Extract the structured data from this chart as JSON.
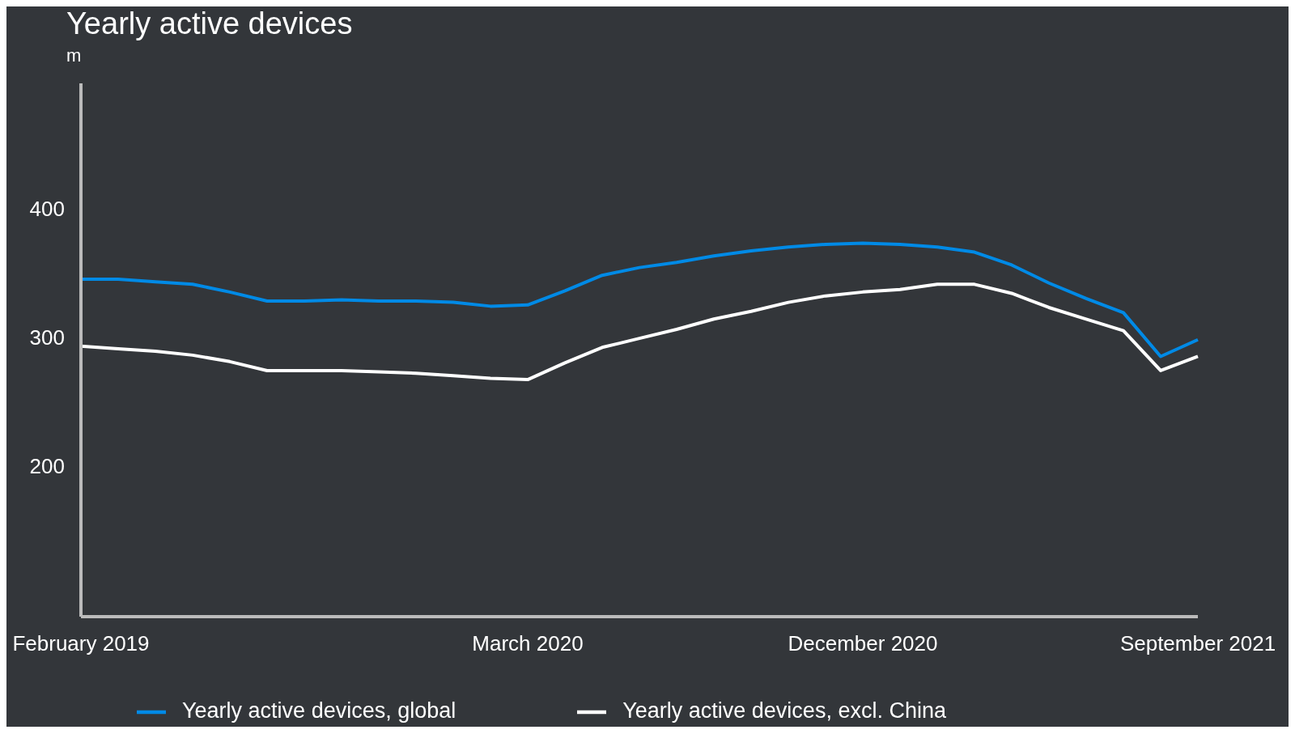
{
  "chart_data": {
    "type": "line",
    "title": "Yearly active devices",
    "ylabel": "m",
    "categories": [
      "February 2019",
      null,
      null,
      null,
      null,
      null,
      null,
      null,
      null,
      null,
      null,
      null,
      "March 2020",
      null,
      null,
      null,
      null,
      null,
      null,
      null,
      null,
      "December 2020",
      null,
      null,
      null,
      null,
      null,
      null,
      null,
      null,
      "September 2021"
    ],
    "series": [
      {
        "name": "Yearly active devices, global",
        "color": "#008ae6",
        "values": [
          345,
          345,
          343,
          341,
          335,
          328,
          328,
          329,
          328,
          328,
          327,
          324,
          325,
          336,
          348,
          354,
          358,
          363,
          367,
          370,
          372,
          373,
          372,
          370,
          366,
          356,
          342,
          330,
          319,
          285,
          298
        ]
      },
      {
        "name": "Yearly active devices, excl. China",
        "color": "#ffffff",
        "values": [
          293,
          291,
          289,
          286,
          281,
          274,
          274,
          274,
          273,
          272,
          270,
          268,
          267,
          280,
          292,
          299,
          306,
          314,
          320,
          327,
          332,
          335,
          337,
          341,
          341,
          334,
          323,
          314,
          305,
          274,
          285
        ]
      }
    ],
    "ylim": [
      83,
      497
    ],
    "yticks": [
      200,
      300,
      400
    ],
    "grid": false,
    "legend": "bottom",
    "line_style": "solid",
    "marker": "none"
  }
}
